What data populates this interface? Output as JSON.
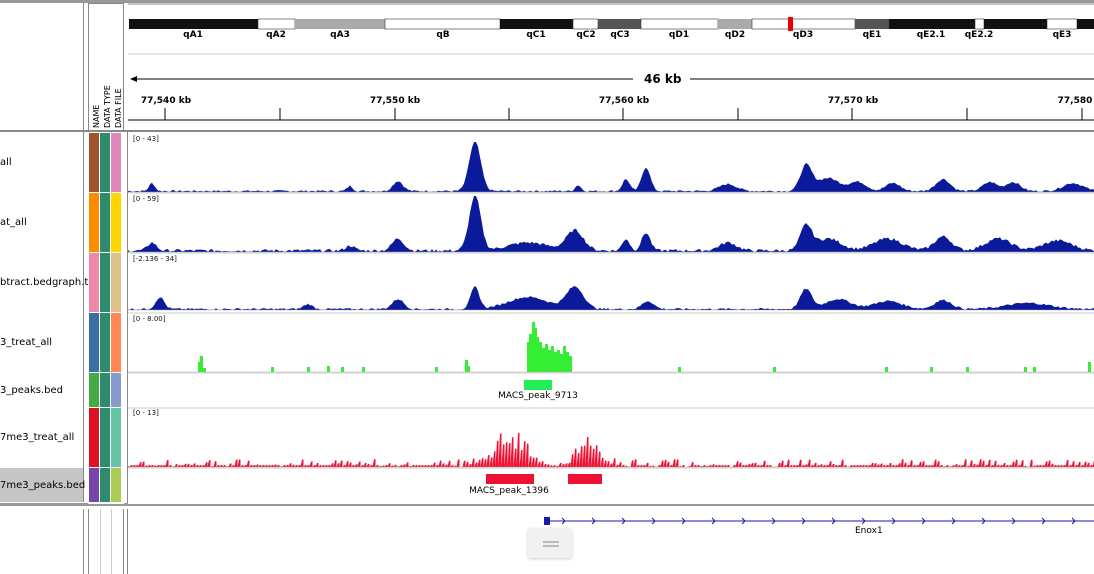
{
  "colors": {
    "blue": "#0a1a9a",
    "green": "#33ee33",
    "red": "#ee1133",
    "peak_green": "#22ee55"
  },
  "attr_headers": [
    "NAME",
    "DATA TYPE",
    "DATA FILE"
  ],
  "ideogram": {
    "bands": [
      "qA1",
      "qA2",
      "qA3",
      "qB",
      "qC1",
      "qC2",
      "qC3",
      "qD1",
      "qD2",
      "qD3",
      "qE1",
      "qE2.1",
      "qE2.2",
      "qE3"
    ],
    "region_span": "46 kb"
  },
  "ruler": {
    "ticks": [
      "77,540 kb",
      "77,550 kb",
      "77,560 kb",
      "77,570 kb",
      "77,580"
    ]
  },
  "tracks": [
    {
      "name": "all",
      "scale": "[0 - 43]"
    },
    {
      "name": "at_all",
      "scale": "[0 - 59]"
    },
    {
      "name": "btract.bedgraph.tc",
      "scale": "[-2.136 - 34]"
    },
    {
      "name": "3_treat_all",
      "scale": "[0 - 8.00]"
    },
    {
      "name": "3_peaks.bed",
      "feature": "MACS_peak_9713"
    },
    {
      "name": "7me3_treat_all",
      "scale": "[0 - 13]"
    },
    {
      "name": "7me3_peaks.bed",
      "feature": "MACS_peak_1396"
    }
  ],
  "gene": {
    "name": "Enox1"
  }
}
